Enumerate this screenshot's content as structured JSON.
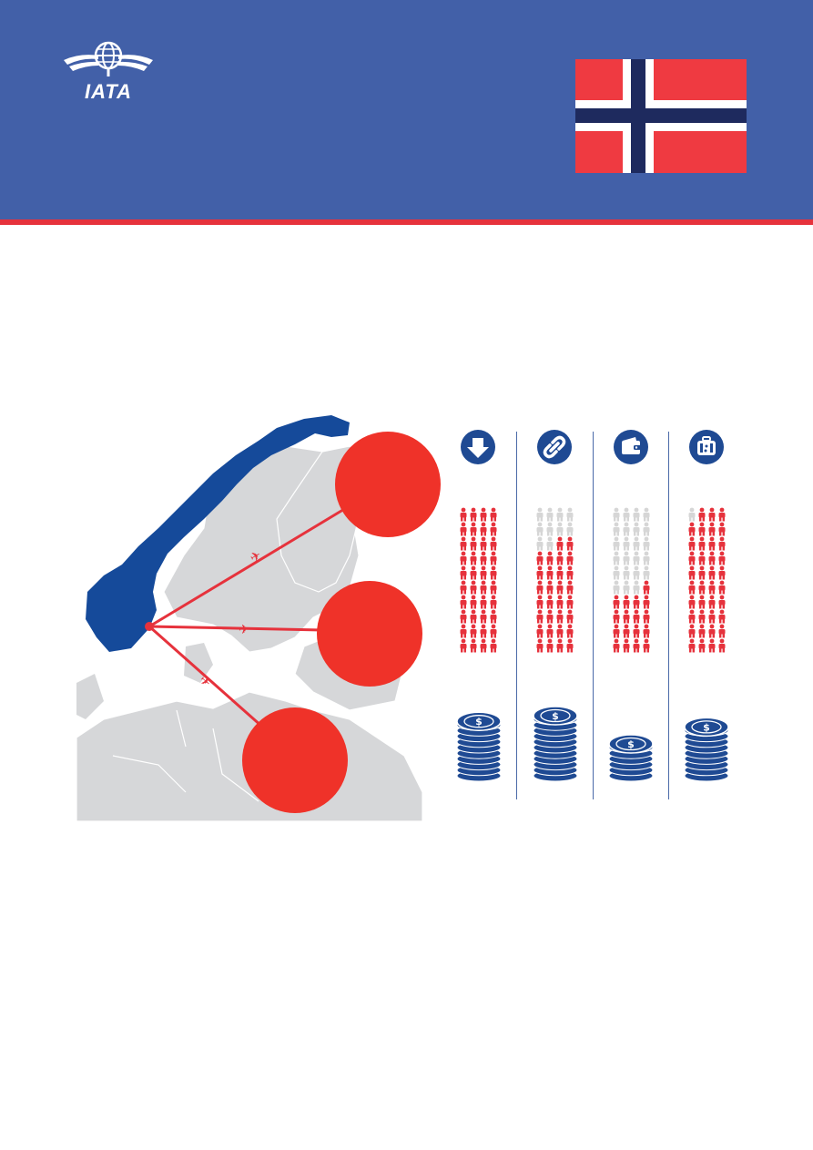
{
  "header": {
    "logo_text": "IATA",
    "logo_icon": "iata-globe-wings-icon",
    "flag": "norway-flag",
    "colors": {
      "band": "#4260a8",
      "stripe": "#e6323c"
    }
  },
  "map": {
    "highlight_country": "Norway",
    "highlight_color": "#1a4a9a",
    "route_color": "#e6323c",
    "route_icon": "airplane-icon",
    "route_count": 3
  },
  "columns": [
    {
      "icon": "down-arrow-icon",
      "people_highlighted": 40,
      "people_total": 40,
      "coin_stack": 10
    },
    {
      "icon": "link-chain-icon",
      "people_highlighted": 30,
      "people_total": 40,
      "coin_stack": 11
    },
    {
      "icon": "wallet-icon",
      "people_highlighted": 17,
      "people_total": 40,
      "coin_stack": 6
    },
    {
      "icon": "luggage-icon",
      "people_highlighted": 39,
      "people_total": 40,
      "coin_stack": 9
    }
  ],
  "colors": {
    "person_on": "#e6323c",
    "person_off": "#d6d6d6",
    "coin": "#1f4a93",
    "icon_bg": "#1f4a93"
  }
}
